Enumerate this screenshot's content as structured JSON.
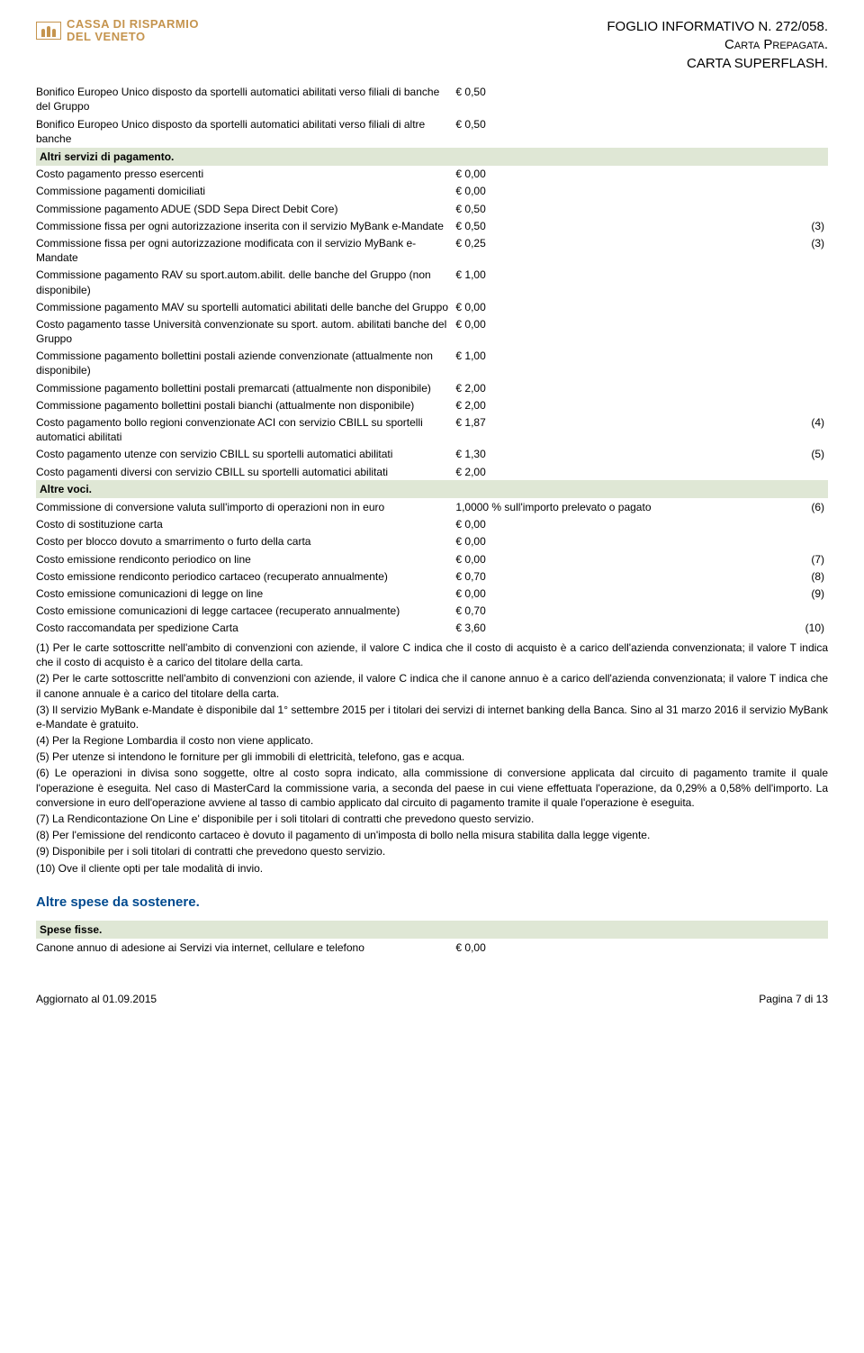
{
  "logo": {
    "line1": "CASSA DI RISPARMIO",
    "line2": "DEL VENETO"
  },
  "doc_title": {
    "l1": "FOGLIO INFORMATIVO N. 272/058.",
    "l2": "Carta Prepagata.",
    "l3": "CARTA SUPERFLASH."
  },
  "pre_rows": [
    {
      "label": "Bonifico Europeo Unico disposto da sportelli automatici abilitati verso filiali di banche del Gruppo",
      "value": "€ 0,50",
      "note": ""
    },
    {
      "label": "Bonifico Europeo Unico disposto da sportelli automatici abilitati verso filiali di altre banche",
      "value": "€ 0,50",
      "note": ""
    }
  ],
  "section1": {
    "heading": "Altri servizi di pagamento."
  },
  "rows1": [
    {
      "label": "Costo pagamento presso esercenti",
      "value": "€ 0,00",
      "note": ""
    },
    {
      "label": "Commissione pagamenti domiciliati",
      "value": "€ 0,00",
      "note": ""
    },
    {
      "label": "Commissione pagamento ADUE (SDD Sepa Direct Debit Core)",
      "value": "€ 0,50",
      "note": ""
    },
    {
      "label": "Commissione fissa per ogni autorizzazione inserita con il servizio MyBank e-Mandate",
      "value": "€ 0,50",
      "note": "(3)"
    },
    {
      "label": "Commissione fissa per ogni autorizzazione modificata con il servizio MyBank e-Mandate",
      "value": "€ 0,25",
      "note": "(3)"
    },
    {
      "label": "Commissione pagamento RAV su sport.autom.abilit. delle banche del Gruppo (non disponibile)",
      "value": "€ 1,00",
      "note": ""
    },
    {
      "label": "Commissione pagamento MAV su sportelli automatici abilitati delle banche del Gruppo",
      "value": "€ 0,00",
      "note": ""
    },
    {
      "label": "Costo pagamento tasse Università convenzionate su sport. autom. abilitati banche del Gruppo",
      "value": "€ 0,00",
      "note": ""
    },
    {
      "label": "Commissione pagamento bollettini postali aziende convenzionate (attualmente non disponibile)",
      "value": "€ 1,00",
      "note": ""
    },
    {
      "label": "Commissione pagamento bollettini postali premarcati (attualmente non disponibile)",
      "value": "€ 2,00",
      "note": ""
    },
    {
      "label": "Commissione pagamento bollettini postali bianchi (attualmente non disponibile)",
      "value": "€ 2,00",
      "note": ""
    },
    {
      "label": "Costo pagamento bollo regioni convenzionate ACI con servizio CBILL su sportelli automatici abilitati",
      "value": "€ 1,87",
      "note": "(4)"
    },
    {
      "label": "Costo pagamento utenze con servizio CBILL su sportelli automatici abilitati",
      "value": "€ 1,30",
      "note": "(5)"
    },
    {
      "label": "Costo pagamenti diversi con servizio CBILL su sportelli automatici abilitati",
      "value": "€ 2,00",
      "note": ""
    }
  ],
  "section2": {
    "heading": "Altre voci."
  },
  "rows2": [
    {
      "label": "Commissione di conversione valuta sull'importo di operazioni non in euro",
      "value": "1,0000 % sull'importo prelevato o pagato",
      "note": "(6)"
    },
    {
      "label": "Costo di sostituzione carta",
      "value": "€ 0,00",
      "note": ""
    },
    {
      "label": "Costo per blocco dovuto a smarrimento o furto della carta",
      "value": "€ 0,00",
      "note": ""
    },
    {
      "label": "Costo emissione rendiconto periodico on line",
      "value": "€ 0,00",
      "note": "(7)"
    },
    {
      "label": "Costo emissione rendiconto periodico cartaceo (recuperato annualmente)",
      "value": "€ 0,70",
      "note": "(8)"
    },
    {
      "label": "Costo emissione comunicazioni di legge on line",
      "value": "€ 0,00",
      "note": "(9)"
    },
    {
      "label": "Costo emissione comunicazioni di legge cartacee (recuperato annualmente)",
      "value": "€ 0,70",
      "note": ""
    },
    {
      "label": "Costo raccomandata per spedizione Carta",
      "value": "€ 3,60",
      "note": "(10)"
    }
  ],
  "footnotes": [
    "(1) Per le carte sottoscritte nell'ambito di convenzioni con aziende, il valore C indica che il costo di acquisto è a carico dell'azienda convenzionata; il valore T indica che il costo di acquisto è a carico del titolare della carta.",
    "(2) Per le carte sottoscritte nell'ambito di convenzioni con aziende, il valore C indica che il canone annuo è a carico dell'azienda convenzionata; il valore T indica che il canone annuale è a carico del titolare della carta.",
    "(3) Il servizio MyBank e-Mandate è disponibile dal 1° settembre 2015 per i titolari dei servizi di internet banking della Banca. Sino al 31 marzo 2016 il servizio MyBank e-Mandate è gratuito.",
    "(4) Per la Regione Lombardia il costo non viene applicato.",
    "(5) Per utenze si intendono le forniture per gli immobili di elettricità, telefono, gas e acqua.",
    "(6) Le operazioni in divisa sono soggette, oltre al costo sopra indicato, alla commissione di conversione applicata dal circuito di pagamento tramite il quale l'operazione è eseguita. Nel caso di MasterCard la commissione varia, a seconda del paese in cui viene effettuata l'operazione, da 0,29% a 0,58% dell'importo. La conversione in euro dell'operazione avviene al tasso di cambio applicato dal circuito di pagamento tramite il quale l'operazione è eseguita.",
    "(7) La Rendicontazione On Line e' disponibile per i soli titolari di contratti che prevedono questo servizio.",
    "(8) Per l'emissione del rendiconto cartaceo è dovuto il pagamento di un'imposta di bollo nella misura stabilita dalla legge vigente.",
    "(9) Disponibile per i soli titolari di contratti che prevedono questo servizio.",
    "(10) Ove il cliente opti per tale modalità di invio."
  ],
  "section_title": "Altre spese da sostenere.",
  "section3": {
    "heading": "Spese fisse."
  },
  "rows3": [
    {
      "label": "Canone annuo di adesione ai Servizi via internet, cellulare e telefono",
      "value": "€ 0,00",
      "note": ""
    }
  ],
  "footer": {
    "left": "Aggiornato al 01.09.2015",
    "right": "Pagina 7 di 13"
  },
  "colors": {
    "heading_bg": "#dfe7d5",
    "brand": "#c5944e",
    "section_title": "#004a8f"
  }
}
